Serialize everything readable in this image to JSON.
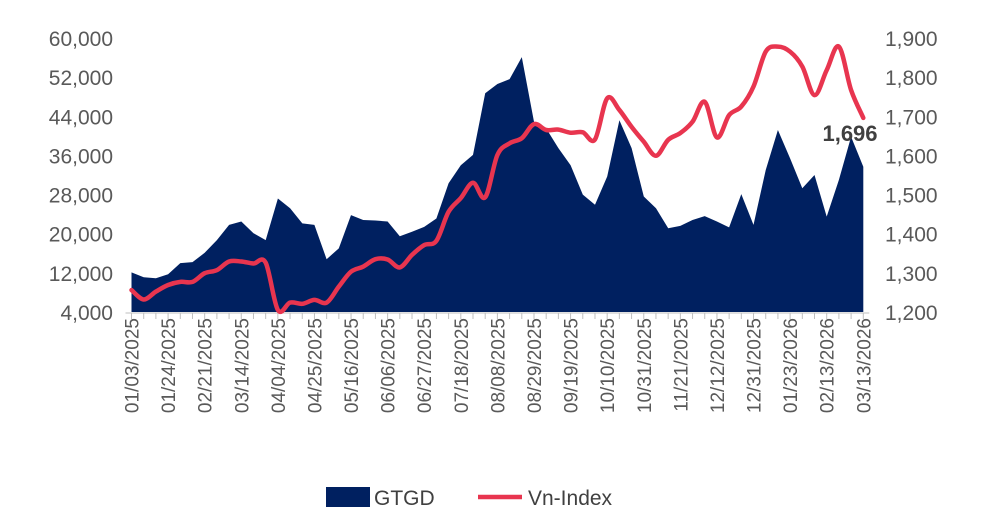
{
  "chart_data": {
    "type": "area+line",
    "left_axis": {
      "ylim": [
        4000,
        60000
      ],
      "ticks": [
        "60,000",
        "52,000",
        "44,000",
        "36,000",
        "28,000",
        "20,000",
        "12,000",
        "4,000"
      ]
    },
    "right_axis": {
      "ylim": [
        1200,
        1900
      ],
      "ticks": [
        "1,900",
        "1,800",
        "1,700",
        "1,600",
        "1,500",
        "1,400",
        "1,300",
        "1,200"
      ]
    },
    "x_tick_labels": [
      "01/03/2025",
      "01/24/2025",
      "02/21/2025",
      "03/14/2025",
      "04/04/2025",
      "04/25/2025",
      "05/16/2025",
      "06/06/2025",
      "06/27/2025",
      "07/18/2025",
      "08/08/2025",
      "08/29/2025",
      "09/19/2025",
      "10/10/2025",
      "10/31/2025",
      "11/21/2025",
      "12/12/2025",
      "12/31/2025",
      "01/23/2026",
      "02/13/2026",
      "03/13/2026"
    ],
    "x_tick_every": 3,
    "grid": false,
    "legend": "bottom",
    "series": [
      {
        "name": "GTGD",
        "type": "area",
        "axis": "left",
        "color": "#002060",
        "values": [
          12100,
          11100,
          10900,
          11700,
          14000,
          14200,
          16100,
          18700,
          21800,
          22500,
          20100,
          18700,
          27200,
          25200,
          22100,
          21800,
          14800,
          17000,
          23800,
          22800,
          22700,
          22500,
          19500,
          20400,
          21400,
          23100,
          30300,
          34000,
          36100,
          48700,
          50600,
          51600,
          56100,
          42900,
          41500,
          37500,
          34000,
          28000,
          25900,
          31700,
          43200,
          37500,
          27600,
          25200,
          21100,
          21600,
          22800,
          23600,
          22500,
          21300,
          28100,
          21800,
          33000,
          41200,
          35400,
          29300,
          32000,
          23500,
          31000,
          39800,
          33700
        ]
      },
      {
        "name": "Vn-Index",
        "type": "line",
        "axis": "right",
        "color": "#E8354F",
        "values": [
          1256,
          1232,
          1252,
          1269,
          1277,
          1277,
          1299,
          1307,
          1329,
          1329,
          1324,
          1326,
          1205,
          1224,
          1221,
          1231,
          1224,
          1265,
          1303,
          1316,
          1335,
          1334,
          1314,
          1346,
          1371,
          1382,
          1456,
          1491,
          1530,
          1493,
          1601,
          1631,
          1644,
          1680,
          1665,
          1666,
          1658,
          1659,
          1641,
          1746,
          1716,
          1673,
          1635,
          1599,
          1640,
          1657,
          1686,
          1737,
          1646,
          1703,
          1725,
          1776,
          1865,
          1878,
          1865,
          1827,
          1754,
          1818,
          1878,
          1767,
          1696
        ]
      }
    ],
    "annotations": [
      {
        "text": "1,696",
        "series": "Vn-Index",
        "point": "last"
      }
    ]
  }
}
